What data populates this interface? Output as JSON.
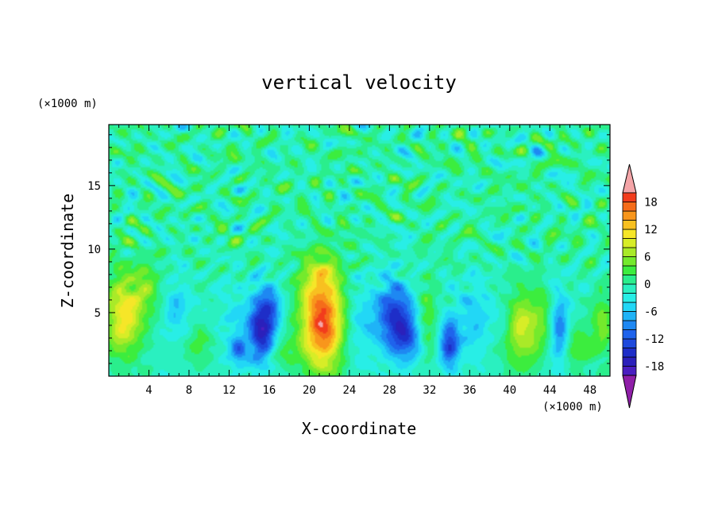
{
  "chart_data": {
    "type": "heatmap",
    "title": "vertical velocity",
    "xlabel": "X-coordinate",
    "ylabel": "Z-coordinate",
    "x_unit": "(×1000 m)",
    "z_unit": "(×1000 m)",
    "xlim": [
      0,
      50
    ],
    "ylim": [
      0,
      19.8
    ],
    "x_ticks": [
      4,
      8,
      12,
      16,
      20,
      24,
      28,
      32,
      36,
      40,
      44,
      48
    ],
    "y_ticks": [
      5,
      10,
      15
    ],
    "colorbar": {
      "range": [
        -21,
        21
      ],
      "step": 2,
      "tick_labels": [
        "18",
        "12",
        "6",
        "0",
        "-6",
        "-12",
        "-18"
      ],
      "tick_values": [
        18,
        12,
        6,
        0,
        -6,
        -12,
        -18
      ],
      "colors": [
        "#8f1fa8",
        "#4a1ec0",
        "#2b20bb",
        "#1e2ec8",
        "#1e49dc",
        "#1f63ec",
        "#1e88f2",
        "#1fb3f7",
        "#22d7f6",
        "#28eee6",
        "#2af0c0",
        "#2aee8c",
        "#3ced3e",
        "#74ea2c",
        "#a9ea28",
        "#d7ed27",
        "#f6e628",
        "#f8c020",
        "#f8961c",
        "#f56c1a",
        "#f23c1c",
        "#f4a5a8"
      ]
    },
    "features": [
      {
        "x": 1.5,
        "z": 4.8,
        "w": 12,
        "sx": 1.3,
        "sz": 2.3
      },
      {
        "x": 3.8,
        "z": 6.8,
        "w": 5,
        "sx": 1.0,
        "sz": 1.5
      },
      {
        "x": 6.8,
        "z": 5.5,
        "w": -5,
        "sx": 0.9,
        "sz": 1.5
      },
      {
        "x": 9.0,
        "z": 2.5,
        "w": 4,
        "sx": 1.0,
        "sz": 1.0
      },
      {
        "x": 12.5,
        "z": 4.0,
        "w": -3,
        "sx": 1.0,
        "sz": 2.0
      },
      {
        "x": 13.0,
        "z": 2.0,
        "w": -8,
        "sx": 0.6,
        "sz": 0.8
      },
      {
        "x": 15.2,
        "z": 3.8,
        "w": -16,
        "sx": 0.9,
        "sz": 1.8
      },
      {
        "x": 16.3,
        "z": 5.5,
        "w": -6,
        "sx": 0.7,
        "sz": 1.4
      },
      {
        "x": 17.5,
        "z": 2.0,
        "w": 3,
        "sx": 1.0,
        "sz": 1.0
      },
      {
        "x": 21.3,
        "z": 4.2,
        "w": 20,
        "sx": 1.5,
        "sz": 2.6
      },
      {
        "x": 21.0,
        "z": 8.0,
        "w": 5,
        "sx": 1.4,
        "sz": 1.3
      },
      {
        "x": 25.0,
        "z": 4.0,
        "w": -4,
        "sx": 1.2,
        "sz": 2.0
      },
      {
        "x": 28.5,
        "z": 4.8,
        "w": -13,
        "sx": 1.3,
        "sz": 1.9
      },
      {
        "x": 29.8,
        "z": 2.8,
        "w": -8,
        "sx": 1.0,
        "sz": 1.3
      },
      {
        "x": 31.8,
        "z": 4.5,
        "w": 5,
        "sx": 0.7,
        "sz": 2.2
      },
      {
        "x": 34.0,
        "z": 2.6,
        "w": -13,
        "sx": 0.7,
        "sz": 1.3
      },
      {
        "x": 36.5,
        "z": 4.5,
        "w": -5,
        "sx": 1.2,
        "sz": 2.0
      },
      {
        "x": 39.5,
        "z": 4.5,
        "w": -3,
        "sx": 0.7,
        "sz": 1.5
      },
      {
        "x": 41.2,
        "z": 3.7,
        "w": 10,
        "sx": 1.4,
        "sz": 2.0
      },
      {
        "x": 43.2,
        "z": 5.0,
        "w": 3,
        "sx": 0.6,
        "sz": 1.6
      },
      {
        "x": 45.0,
        "z": 3.8,
        "w": -9,
        "sx": 0.6,
        "sz": 1.8
      },
      {
        "x": 46.8,
        "z": 2.2,
        "w": 5,
        "sx": 0.9,
        "sz": 1.1
      },
      {
        "x": 49.2,
        "z": 4.0,
        "w": 6,
        "sx": 0.8,
        "sz": 1.8
      }
    ]
  }
}
